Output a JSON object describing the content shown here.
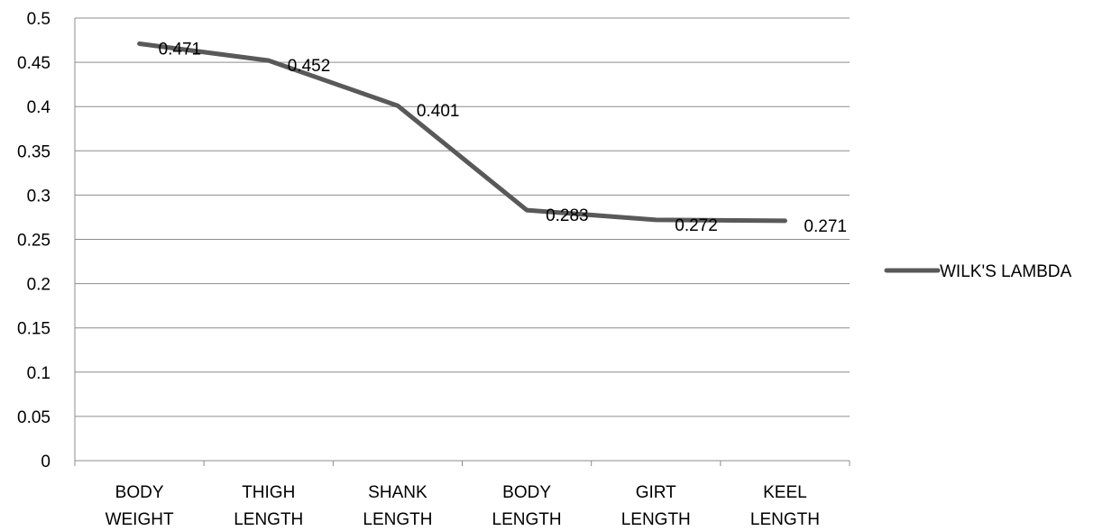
{
  "chart_data": {
    "type": "line",
    "title": "",
    "xlabel": "",
    "ylabel": "",
    "categories": [
      [
        "BODY",
        "WEIGHT"
      ],
      [
        "THIGH",
        "LENGTH"
      ],
      [
        "SHANK",
        "LENGTH"
      ],
      [
        "BODY",
        "LENGTH"
      ],
      [
        "GIRT",
        "LENGTH"
      ],
      [
        "KEEL",
        "LENGTH"
      ]
    ],
    "series": [
      {
        "name": "WILK'S LAMBDA",
        "values": [
          0.471,
          0.452,
          0.401,
          0.283,
          0.272,
          0.271
        ],
        "labels": [
          "0.471",
          "0.452",
          "0.401",
          "0.283",
          "0.272",
          "0.271"
        ],
        "color": "#595959"
      }
    ],
    "ylim": [
      0,
      0.5
    ],
    "yticks": [
      "0",
      "0.05",
      "0.1",
      "0.15",
      "0.2",
      "0.25",
      "0.3",
      "0.35",
      "0.4",
      "0.45",
      "0.5"
    ],
    "grid": true,
    "legend": "right"
  }
}
